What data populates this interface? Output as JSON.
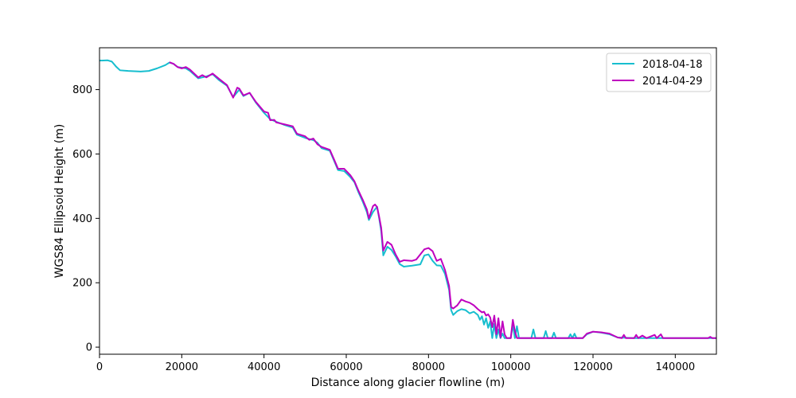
{
  "chart_data": {
    "type": "line",
    "title": "",
    "xlabel": "Distance along glacier flowline (m)",
    "ylabel": "WGS84 Ellipsoid Height (m)",
    "xlim": [
      0,
      150000
    ],
    "ylim": [
      -22,
      930
    ],
    "xticks": [
      0,
      20000,
      40000,
      60000,
      80000,
      100000,
      120000,
      140000
    ],
    "xtick_labels": [
      "0",
      "20000",
      "40000",
      "60000",
      "80000",
      "100000",
      "120000",
      "140000"
    ],
    "yticks": [
      0,
      200,
      400,
      600,
      800
    ],
    "ytick_labels": [
      "0",
      "200",
      "400",
      "600",
      "800"
    ],
    "grid": false,
    "legend_position": "top-right",
    "series": [
      {
        "name": "2018-04-18",
        "color": "#17becf",
        "points": [
          [
            0,
            890
          ],
          [
            2000,
            891
          ],
          [
            3000,
            887
          ],
          [
            4000,
            872
          ],
          [
            5000,
            860
          ],
          [
            7000,
            858
          ],
          [
            10000,
            856
          ],
          [
            12000,
            858
          ],
          [
            14000,
            866
          ],
          [
            16000,
            876
          ],
          [
            17000,
            884
          ],
          [
            18000,
            880
          ],
          [
            19000,
            870
          ],
          [
            21000,
            866
          ],
          [
            22000,
            858
          ],
          [
            24000,
            835
          ],
          [
            26000,
            841
          ],
          [
            27500,
            848
          ],
          [
            29000,
            830
          ],
          [
            31000,
            812
          ],
          [
            32500,
            777
          ],
          [
            34000,
            800
          ],
          [
            35000,
            780
          ],
          [
            36500,
            790
          ],
          [
            38000,
            760
          ],
          [
            40000,
            728
          ],
          [
            41500,
            708
          ],
          [
            43000,
            700
          ],
          [
            45000,
            690
          ],
          [
            47000,
            682
          ],
          [
            48000,
            660
          ],
          [
            50000,
            650
          ],
          [
            52000,
            643
          ],
          [
            53000,
            635
          ],
          [
            54000,
            618
          ],
          [
            56000,
            610
          ],
          [
            57000,
            580
          ],
          [
            58000,
            550
          ],
          [
            59500,
            547
          ],
          [
            61000,
            528
          ],
          [
            62000,
            512
          ],
          [
            63000,
            480
          ],
          [
            64000,
            452
          ],
          [
            65000,
            420
          ],
          [
            65500,
            395
          ],
          [
            66500,
            420
          ],
          [
            67500,
            436
          ],
          [
            68000,
            400
          ],
          [
            68500,
            360
          ],
          [
            69000,
            285
          ],
          [
            70000,
            312
          ],
          [
            71000,
            302
          ],
          [
            72000,
            282
          ],
          [
            73000,
            258
          ],
          [
            74000,
            250
          ],
          [
            76000,
            253
          ],
          [
            78000,
            257
          ],
          [
            79000,
            285
          ],
          [
            80000,
            288
          ],
          [
            81000,
            268
          ],
          [
            82000,
            254
          ],
          [
            83000,
            253
          ],
          [
            84000,
            228
          ],
          [
            85000,
            178
          ],
          [
            85500,
            115
          ],
          [
            86000,
            100
          ],
          [
            87000,
            112
          ],
          [
            88000,
            118
          ],
          [
            89000,
            115
          ],
          [
            90000,
            105
          ],
          [
            91000,
            110
          ],
          [
            92000,
            100
          ],
          [
            92500,
            85
          ],
          [
            93000,
            96
          ],
          [
            93500,
            70
          ],
          [
            94000,
            90
          ],
          [
            94500,
            60
          ],
          [
            95000,
            80
          ],
          [
            95500,
            28
          ],
          [
            96000,
            72
          ],
          [
            96500,
            28
          ],
          [
            97000,
            55
          ],
          [
            97500,
            28
          ],
          [
            98000,
            42
          ],
          [
            98500,
            28
          ],
          [
            100000,
            28
          ],
          [
            100500,
            70
          ],
          [
            101000,
            28
          ],
          [
            101500,
            65
          ],
          [
            102000,
            28
          ],
          [
            105000,
            28
          ],
          [
            105500,
            55
          ],
          [
            106000,
            28
          ],
          [
            108000,
            28
          ],
          [
            108500,
            50
          ],
          [
            109000,
            28
          ],
          [
            110000,
            28
          ],
          [
            110500,
            45
          ],
          [
            111000,
            28
          ],
          [
            114000,
            28
          ],
          [
            114500,
            40
          ],
          [
            115000,
            28
          ],
          [
            115500,
            42
          ],
          [
            116000,
            28
          ],
          [
            117500,
            28
          ],
          [
            118500,
            40
          ],
          [
            120000,
            48
          ],
          [
            122000,
            45
          ],
          [
            124000,
            40
          ],
          [
            126000,
            30
          ],
          [
            130000,
            28
          ],
          [
            140000,
            28
          ],
          [
            150000,
            28
          ]
        ]
      },
      {
        "name": "2014-04-29",
        "color": "#bf00bf",
        "points": [
          [
            17000,
            885
          ],
          [
            18000,
            880
          ],
          [
            19000,
            870
          ],
          [
            20000,
            866
          ],
          [
            21000,
            870
          ],
          [
            22000,
            862
          ],
          [
            24000,
            838
          ],
          [
            25000,
            845
          ],
          [
            26000,
            838
          ],
          [
            27500,
            850
          ],
          [
            29000,
            834
          ],
          [
            31000,
            814
          ],
          [
            32500,
            775
          ],
          [
            33500,
            806
          ],
          [
            34000,
            803
          ],
          [
            35000,
            782
          ],
          [
            36500,
            790
          ],
          [
            38000,
            762
          ],
          [
            40000,
            732
          ],
          [
            41000,
            728
          ],
          [
            41500,
            705
          ],
          [
            42500,
            706
          ],
          [
            43000,
            698
          ],
          [
            45000,
            692
          ],
          [
            47000,
            686
          ],
          [
            48000,
            663
          ],
          [
            50000,
            655
          ],
          [
            51000,
            644
          ],
          [
            52000,
            648
          ],
          [
            53000,
            630
          ],
          [
            54000,
            622
          ],
          [
            56000,
            613
          ],
          [
            57000,
            584
          ],
          [
            58000,
            554
          ],
          [
            59500,
            554
          ],
          [
            61000,
            534
          ],
          [
            62000,
            515
          ],
          [
            63000,
            485
          ],
          [
            64000,
            458
          ],
          [
            65000,
            428
          ],
          [
            65500,
            400
          ],
          [
            66500,
            438
          ],
          [
            67000,
            443
          ],
          [
            67500,
            435
          ],
          [
            68000,
            405
          ],
          [
            68500,
            370
          ],
          [
            69000,
            300
          ],
          [
            70000,
            327
          ],
          [
            71000,
            318
          ],
          [
            72000,
            288
          ],
          [
            73000,
            265
          ],
          [
            74000,
            270
          ],
          [
            76000,
            268
          ],
          [
            77000,
            272
          ],
          [
            78000,
            288
          ],
          [
            79000,
            304
          ],
          [
            80000,
            308
          ],
          [
            81000,
            298
          ],
          [
            82000,
            268
          ],
          [
            83000,
            274
          ],
          [
            84000,
            240
          ],
          [
            85000,
            190
          ],
          [
            85500,
            125
          ],
          [
            86000,
            120
          ],
          [
            87000,
            130
          ],
          [
            88000,
            148
          ],
          [
            89000,
            142
          ],
          [
            90000,
            138
          ],
          [
            91000,
            130
          ],
          [
            92000,
            118
          ],
          [
            93000,
            108
          ],
          [
            93500,
            110
          ],
          [
            94000,
            98
          ],
          [
            94500,
            102
          ],
          [
            95000,
            92
          ],
          [
            95500,
            62
          ],
          [
            96000,
            98
          ],
          [
            96500,
            40
          ],
          [
            97000,
            90
          ],
          [
            97500,
            30
          ],
          [
            98000,
            80
          ],
          [
            98500,
            40
          ],
          [
            99000,
            28
          ],
          [
            100000,
            28
          ],
          [
            100500,
            85
          ],
          [
            101000,
            50
          ],
          [
            101500,
            28
          ],
          [
            104000,
            28
          ],
          [
            107000,
            28
          ],
          [
            117500,
            28
          ],
          [
            118500,
            42
          ],
          [
            120000,
            48
          ],
          [
            122000,
            46
          ],
          [
            124000,
            42
          ],
          [
            126000,
            30
          ],
          [
            127000,
            28
          ],
          [
            127500,
            38
          ],
          [
            128000,
            28
          ],
          [
            130000,
            28
          ],
          [
            130500,
            38
          ],
          [
            131000,
            28
          ],
          [
            132000,
            36
          ],
          [
            133000,
            28
          ],
          [
            135000,
            38
          ],
          [
            135500,
            28
          ],
          [
            136500,
            40
          ],
          [
            137000,
            28
          ],
          [
            140000,
            28
          ],
          [
            148000,
            28
          ],
          [
            148500,
            32
          ],
          [
            149000,
            28
          ],
          [
            150000,
            28
          ]
        ]
      }
    ]
  }
}
